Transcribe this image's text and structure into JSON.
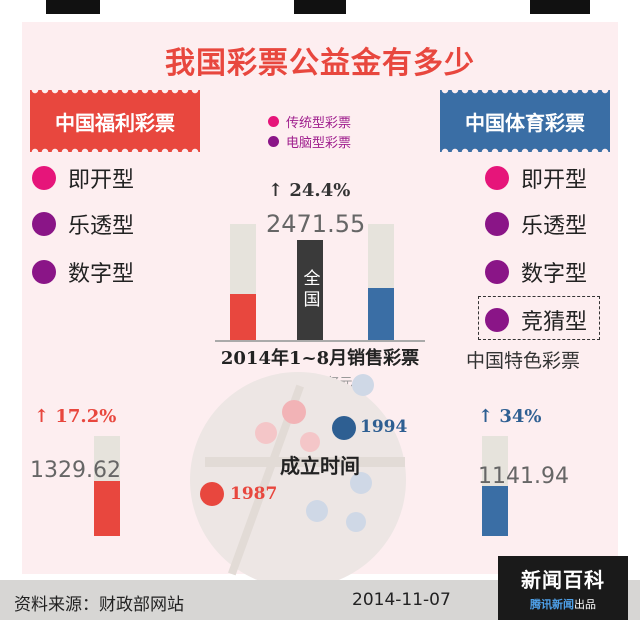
{
  "title": "我国彩票公益金有多少",
  "colors": {
    "red": "#e8473e",
    "blue": "#3a6ea5",
    "pink": "#e6157a",
    "purple": "#8a1587",
    "dark": "#3a3a3a",
    "bar_bg": "#e6e3dc"
  },
  "welfare": {
    "name": "中国福利彩票",
    "growth": "17.2%",
    "amount": "1329.62",
    "sales_share": 0.4,
    "amount_share": 0.55,
    "founded": "1987",
    "categories": [
      {
        "label": "即开型",
        "color": "pink"
      },
      {
        "label": "乐透型",
        "color": "purple"
      },
      {
        "label": "数字型",
        "color": "purple"
      }
    ]
  },
  "sports": {
    "name": "中国体育彩票",
    "growth": "34%",
    "amount": "1141.94",
    "sales_share": 0.45,
    "amount_share": 0.5,
    "founded": "1994",
    "categories": [
      {
        "label": "即开型",
        "color": "pink"
      },
      {
        "label": "乐透型",
        "color": "purple"
      },
      {
        "label": "数字型",
        "color": "purple"
      },
      {
        "label": "竞猜型",
        "color": "purple"
      }
    ],
    "special_label": "中国特色彩票"
  },
  "legend": [
    {
      "label": "传统型彩票",
      "color": "pink"
    },
    {
      "label": "电脑型彩票",
      "color": "purple"
    }
  ],
  "national": {
    "growth": "24.4%",
    "amount": "2471.55",
    "label": "全国"
  },
  "sales_title": "2014年1~8月销售彩票",
  "unit": "单位：亿元",
  "establish_title": "成立时间",
  "footer": {
    "source": "资料来源：财政部网站",
    "date": "2014-11-07",
    "brand_top": "新闻百科",
    "brand_bottom_highlight": "腾讯新闻",
    "brand_bottom_rest": "出品"
  }
}
